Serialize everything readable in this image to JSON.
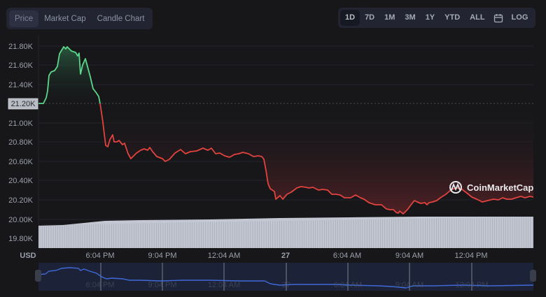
{
  "tabs": [
    {
      "label": "Price",
      "active": true
    },
    {
      "label": "Market Cap",
      "active": false
    },
    {
      "label": "Candle Chart",
      "active": false
    }
  ],
  "ranges": [
    {
      "label": "1D",
      "active": true
    },
    {
      "label": "7D"
    },
    {
      "label": "1M"
    },
    {
      "label": "3M"
    },
    {
      "label": "1Y"
    },
    {
      "label": "YTD"
    },
    {
      "label": "ALL"
    }
  ],
  "calendar_icon": "calendar-icon",
  "log_label": "LOG",
  "currency_label": "USD",
  "watermark": "CoinMarketCap",
  "reference_price_label": "21.20K",
  "colors": {
    "up": "#5bd68a",
    "down": "#e2433f",
    "nav_line": "#3f6ad8",
    "volume": "#c3c7d2"
  },
  "chart_data": {
    "type": "line",
    "title": "Price (1D)",
    "xlabel": "",
    "ylabel": "USD",
    "y_ticks": [
      "21.80K",
      "21.60K",
      "21.40K",
      "21.20K",
      "21.00K",
      "20.80K",
      "20.60K",
      "20.40K",
      "20.20K",
      "20.00K",
      "19.80K"
    ],
    "x_ticks": [
      "6:04 PM",
      "9:04 PM",
      "12:04 AM",
      "27",
      "6:04 AM",
      "9:04 AM",
      "12:04 PM"
    ],
    "ylim": [
      19800,
      21850
    ],
    "reference_price": 21200,
    "series": [
      {
        "name": "Price",
        "x": [
          0,
          2,
          4,
          6,
          8,
          10,
          12,
          14,
          16,
          18,
          20,
          22,
          24,
          26,
          28,
          30,
          32,
          34,
          36,
          38,
          40,
          42,
          44,
          46,
          48,
          50,
          52,
          54,
          56,
          58,
          60,
          62,
          64,
          66,
          68,
          70,
          72,
          74,
          76,
          78,
          80,
          82,
          84,
          86,
          88,
          90,
          92,
          94,
          96,
          98,
          100
        ],
        "values": [
          21200,
          21230,
          21520,
          21590,
          21760,
          21740,
          21700,
          21640,
          21480,
          21230,
          20900,
          20740,
          20800,
          20720,
          20650,
          20720,
          20690,
          20620,
          20700,
          20700,
          20640,
          20720,
          20680,
          20580,
          20600,
          20690,
          20660,
          20650,
          20430,
          20300,
          20330,
          20340,
          20320,
          20300,
          20280,
          20260,
          20230,
          20230,
          20180,
          20120,
          20080,
          20170,
          20200,
          20240,
          20220,
          20240,
          20290,
          20260,
          20250,
          20240,
          20250
        ]
      }
    ],
    "grid": true
  }
}
